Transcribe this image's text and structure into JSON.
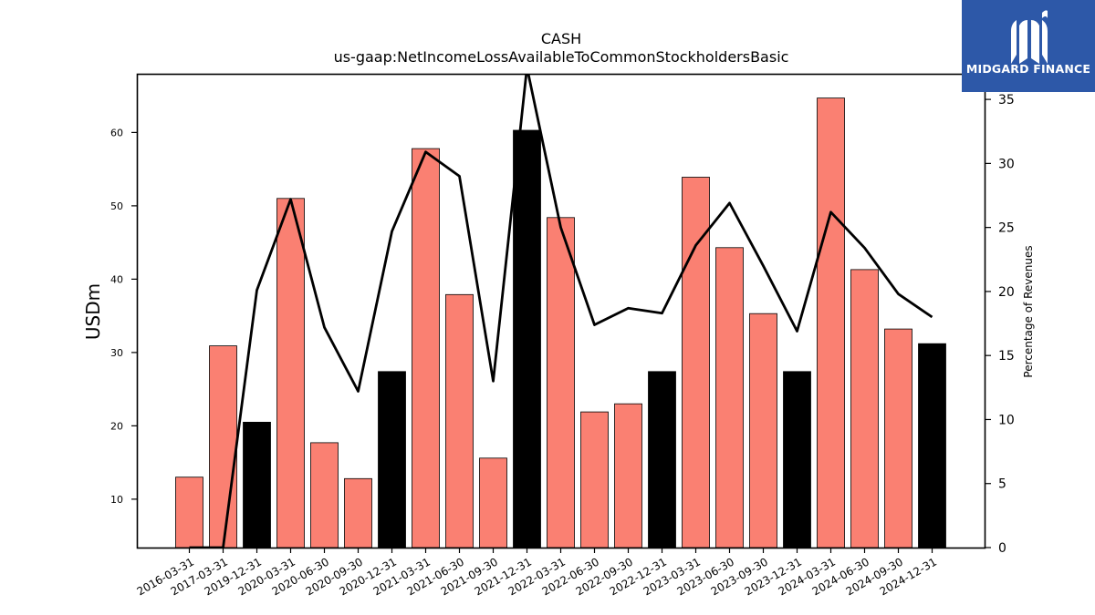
{
  "chart_data": {
    "type": "bar",
    "title": "CASH",
    "subtitle": "us-gaap:NetIncomeLossAvailableToCommonStockholdersBasic",
    "ylabel": "USDm",
    "y2label": "Percentage of Revenues",
    "ylim": [
      3.4,
      68.0
    ],
    "y2lim": [
      0,
      37.0
    ],
    "yticks": [
      10,
      20,
      30,
      40,
      50,
      60
    ],
    "y2ticks": [
      0,
      5,
      10,
      15,
      20,
      25,
      30,
      35
    ],
    "categories": [
      "2016-03-31",
      "2017-03-31",
      "2019-12-31",
      "2020-03-31",
      "2020-06-30",
      "2020-09-30",
      "2020-12-31",
      "2021-03-31",
      "2021-06-30",
      "2021-09-30",
      "2021-12-31",
      "2022-03-31",
      "2022-06-30",
      "2022-09-30",
      "2022-12-31",
      "2023-03-31",
      "2023-06-30",
      "2023-09-30",
      "2023-12-31",
      "2024-03-31",
      "2024-06-30",
      "2024-09-30",
      "2024-12-31"
    ],
    "series": [
      {
        "values": [
          13.0,
          30.9,
          20.5,
          51.0,
          17.7,
          12.8,
          27.4,
          57.8,
          37.9,
          15.6,
          60.3,
          48.4,
          21.9,
          23.0,
          27.4,
          53.9,
          44.3,
          35.3,
          27.4,
          64.7,
          41.3,
          33.2,
          31.2
        ],
        "colors": [
          "#fa8072",
          "#fa8072",
          "#000000",
          "#fa8072",
          "#fa8072",
          "#fa8072",
          "#000000",
          "#fa8072",
          "#fa8072",
          "#fa8072",
          "#000000",
          "#fa8072",
          "#fa8072",
          "#fa8072",
          "#000000",
          "#fa8072",
          "#fa8072",
          "#fa8072",
          "#000000",
          "#fa8072",
          "#fa8072",
          "#fa8072",
          "#000000"
        ]
      },
      {
        "type": "line",
        "axis": "right",
        "color": "#000000",
        "values": [
          0.0,
          0.0,
          20.1,
          27.2,
          17.2,
          12.2,
          24.7,
          30.9,
          29.0,
          13.0,
          37.5,
          25.0,
          17.4,
          18.7,
          18.3,
          23.6,
          26.9,
          22.0,
          16.9,
          26.2,
          23.4,
          19.8,
          18.0
        ]
      }
    ],
    "grid": false
  },
  "brand": {
    "name": "MIDGARD FINANCE",
    "color": "#2d58a8",
    "icon": "midgard-logo-icon"
  }
}
